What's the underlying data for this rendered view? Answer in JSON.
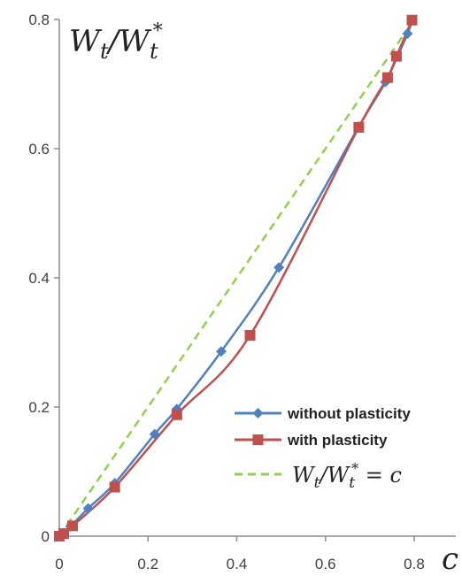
{
  "chart_data": {
    "type": "line",
    "xlabel": "c",
    "ylabel": {
      "base": "W",
      "sub": "t",
      "sep": "/",
      "base2": "W",
      "sub2": "t",
      "sup2": "*"
    },
    "xlim": [
      0,
      0.8
    ],
    "ylim": [
      0,
      0.8
    ],
    "x_ticks": [
      "0",
      "0.2",
      "0.4",
      "0.6",
      "0.8"
    ],
    "y_ticks": [
      "0",
      "0.2",
      "0.4",
      "0.6",
      "0.8"
    ],
    "x_tick_values": [
      0,
      0.2,
      0.4,
      0.6,
      0.8
    ],
    "y_tick_values": [
      0,
      0.2,
      0.4,
      0.6,
      0.8
    ],
    "grid": false,
    "legend_position": "bottom-right",
    "series": [
      {
        "name": "without plasticity",
        "color": "#4f81bd",
        "marker": "diamond",
        "line_style": "solid",
        "points": [
          [
            0.0,
            0.0
          ],
          [
            0.01,
            0.005
          ],
          [
            0.025,
            0.015
          ],
          [
            0.065,
            0.043
          ],
          [
            0.125,
            0.082
          ],
          [
            0.215,
            0.158
          ],
          [
            0.265,
            0.197
          ],
          [
            0.365,
            0.286
          ],
          [
            0.495,
            0.416
          ],
          [
            0.675,
            0.634
          ],
          [
            0.735,
            0.703
          ],
          [
            0.785,
            0.778
          ],
          [
            0.795,
            0.799
          ]
        ]
      },
      {
        "name": "with plasticity",
        "color": "#c0504d",
        "marker": "square",
        "line_style": "solid",
        "points": [
          [
            0.0,
            0.0
          ],
          [
            0.01,
            0.004
          ],
          [
            0.03,
            0.016
          ],
          [
            0.125,
            0.076
          ],
          [
            0.265,
            0.188
          ],
          [
            0.43,
            0.311
          ],
          [
            0.675,
            0.633
          ],
          [
            0.74,
            0.71
          ],
          [
            0.76,
            0.743
          ],
          [
            0.795,
            0.799
          ]
        ]
      },
      {
        "name": "W_t/W_t^* = c",
        "legend_formula": {
          "base": "W",
          "sub": "t",
          "sep": "/",
          "base2": "W",
          "sub2": "t",
          "sup2": "*",
          "rhs": " = c"
        },
        "color": "#92d050",
        "marker": "none",
        "line_style": "dashed",
        "points": [
          [
            0.0,
            0.0
          ],
          [
            0.8,
            0.8
          ]
        ]
      }
    ]
  }
}
